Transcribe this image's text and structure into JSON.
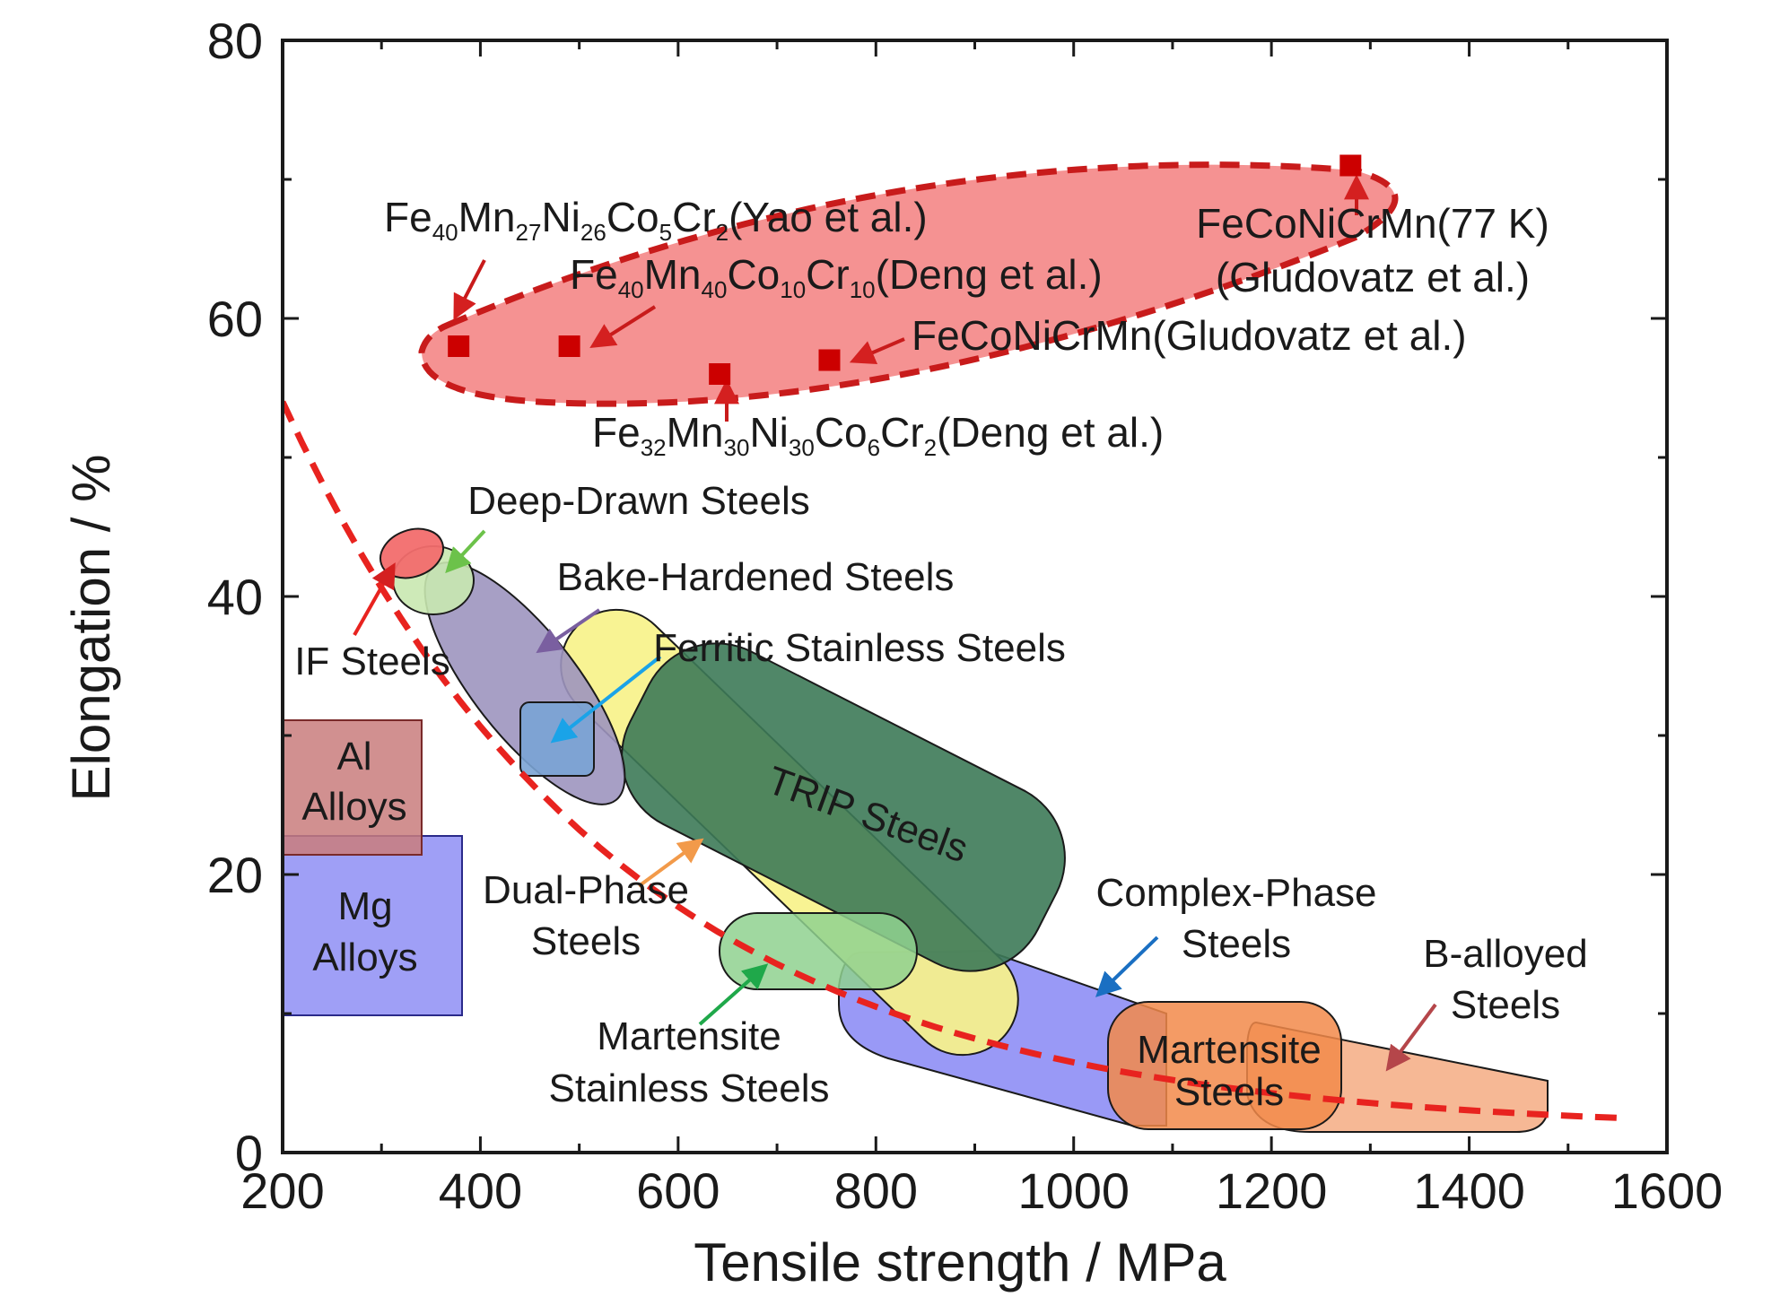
{
  "chart_data": {
    "type": "scatter",
    "title": "",
    "xlabel": "Tensile strength / MPa",
    "ylabel": "Elongation / %",
    "xlim": [
      200,
      1600
    ],
    "ylim": [
      0,
      80
    ],
    "x_ticks": [
      "200",
      "400",
      "600",
      "800",
      "1000",
      "1200",
      "1400",
      "1600"
    ],
    "y_ticks": [
      "0",
      "20",
      "40",
      "60",
      "80"
    ],
    "grid": false,
    "colors": {
      "hea_marker": "#cc0000",
      "hea_region": "#f26d6d",
      "trend_line": "#e8231f"
    },
    "points": [
      {
        "label": "Fe40Mn27Ni26Co5Cr2 (Yao et al.)",
        "x": 378,
        "y": 58
      },
      {
        "label": "Fe40Mn40Co10Cr10 (Deng et al.)",
        "x": 490,
        "y": 58
      },
      {
        "label": "Fe32Mn30Ni30Co6Cr2 (Deng et al.)",
        "x": 642,
        "y": 56
      },
      {
        "label": "FeCoNiCrMn (Gludovatz et al.)",
        "x": 753,
        "y": 57
      },
      {
        "label": "FeCoNiCrMn (77 K) (Gludovatz et al.)",
        "x": 1280,
        "y": 71
      }
    ],
    "point_labels": [
      {
        "base": [
          "Fe",
          "Mn",
          "Ni",
          "Co",
          "Cr"
        ],
        "subs": [
          "40",
          "27",
          "26",
          "5",
          "2"
        ],
        "suffix": "(Yao et al.)"
      },
      {
        "base": [
          "Fe",
          "Mn",
          "Co",
          "Cr"
        ],
        "subs": [
          "40",
          "40",
          "10",
          "10"
        ],
        "suffix": "(Deng et al.)"
      },
      {
        "base": [
          "Fe",
          "Mn",
          "Ni",
          "Co",
          "Cr"
        ],
        "subs": [
          "32",
          "30",
          "30",
          "6",
          "2"
        ],
        "suffix": "(Deng et al.)"
      },
      {
        "text": "FeCoNiCrMn(Gludovatz et al.)"
      },
      {
        "lines": [
          "FeCoNiCrMn(77 K)",
          "(Gludovatz et al.)"
        ]
      }
    ],
    "regions": [
      {
        "name": "IF Steels",
        "lines": [
          "IF Steels"
        ],
        "color": "#f26d6d"
      },
      {
        "name": "Deep-Drawn Steels",
        "lines": [
          "Deep-Drawn Steels"
        ],
        "color": "#c9e8b0"
      },
      {
        "name": "Bake-Hardened Steels",
        "lines": [
          "Bake-Hardened Steels"
        ],
        "color": "#9d95bf"
      },
      {
        "name": "Ferritic Stainless Steels",
        "lines": [
          "Ferritic Stainless Steels"
        ],
        "color": "#7aa3d4"
      },
      {
        "name": "Al Alloys",
        "lines": [
          "Al",
          "Alloys"
        ],
        "color": "#c97c7c"
      },
      {
        "name": "Mg Alloys",
        "lines": [
          "Mg",
          "Alloys"
        ],
        "color": "#8e8ef5"
      },
      {
        "name": "Dual-Phase Steels",
        "lines": [
          "Dual-Phase",
          "Steels"
        ],
        "color": "#f7f28a"
      },
      {
        "name": "TRIP Steels",
        "lines": [
          "TRIP Steels"
        ],
        "color": "#3d7a58"
      },
      {
        "name": "Martensite Stainless Steels",
        "lines": [
          "Martensite",
          "Stainless Steels"
        ],
        "color": "#8fd18f"
      },
      {
        "name": "Complex-Phase Steels",
        "lines": [
          "Complex-Phase",
          "Steels"
        ],
        "color": "#8e8ef5"
      },
      {
        "name": "Martensite Steels",
        "lines": [
          "Martensite",
          "Steels"
        ],
        "color": "#f28a4a"
      },
      {
        "name": "B-alloyed Steels",
        "lines": [
          "B-alloyed",
          "Steels"
        ],
        "color": "#f5b08a"
      }
    ],
    "trend_line": {
      "style": "dashed",
      "color": "#e8231f"
    }
  }
}
